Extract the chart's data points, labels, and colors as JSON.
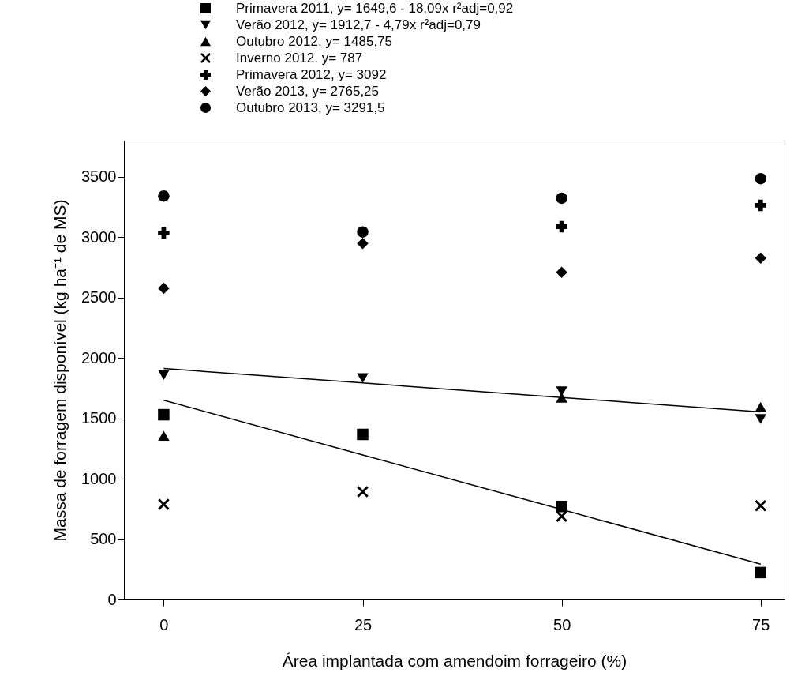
{
  "chart_data": {
    "type": "scatter",
    "xlabel": "Área implantada com amendoim forrageiro (%)",
    "ylabel": "Massa de forragem disponível (kg ha⁻¹ de MS)",
    "x": [
      0,
      25,
      50,
      75
    ],
    "xlim": [
      -5,
      78
    ],
    "xticks": [
      0,
      25,
      50,
      75
    ],
    "ylim": [
      0,
      3800
    ],
    "yticks": [
      0,
      500,
      1000,
      1500,
      2000,
      2500,
      3000,
      3500
    ],
    "grid": false,
    "legend": "top",
    "series": [
      {
        "name": "Primavera 2011, y= 1649,6 - 18,09x  r²adj=0,92",
        "color": "#000000",
        "marker": "square",
        "values": [
          1530,
          1367,
          770,
          223
        ]
      },
      {
        "name": "Verão 2012,  y= 1912,7 - 4,79x  r²adj=0,79",
        "color": "#000000",
        "marker": "triangle-down",
        "values": [
          1860,
          1833,
          1723,
          1495
        ]
      },
      {
        "name": "Outubro 2012, y= 1485,75",
        "color": "#000000",
        "marker": "triangle",
        "values": [
          1355,
          null,
          1672,
          1595
        ]
      },
      {
        "name": "Inverno 2012. y= 787",
        "color": "#000000",
        "marker": "x",
        "values": [
          788,
          892,
          688,
          777
        ]
      },
      {
        "name": "Primavera 2012, y= 3092",
        "color": "#000000",
        "marker": "cross",
        "values": [
          3036,
          null,
          3087,
          3264
        ]
      },
      {
        "name": "Verão 2013, y= 2765,25",
        "color": "#000000",
        "marker": "diamond",
        "values": [
          2577,
          2948,
          2710,
          2827
        ]
      },
      {
        "name": "Outubro 2013, y= 3291,5",
        "color": "#000000",
        "marker": "circle",
        "values": [
          3341,
          3043,
          3323,
          3485
        ]
      },
      {
        "type": "line",
        "color": "#000000",
        "values": [
          1650,
          1197,
          745,
          293
        ],
        "line_style": "solid"
      },
      {
        "type": "line",
        "color": "#000000",
        "values": [
          1913,
          1793,
          1673,
          1553
        ],
        "line_style": "solid"
      }
    ]
  }
}
